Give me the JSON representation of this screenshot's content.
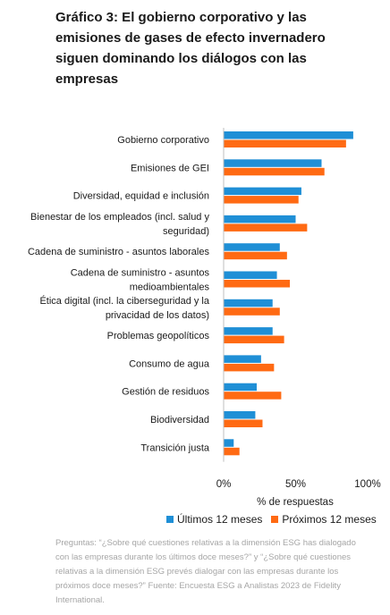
{
  "title": "Gráfico 3: El gobierno corporativo y las emisiones de gases de efecto invernadero siguen dominando los diálogos con las empresas",
  "footnote": "Preguntas: “¿Sobre qué cuestiones relativas a la dimensión ESG has dialogado con las empresas durante los últimos doce meses?” y “¿Sobre qué cuestiones relativas a la dimensión ESG prevés dialogar con las empresas durante los próximos doce meses?” Fuente: Encuesta ESG a Analistas 2023 de Fidelity International.",
  "chart_data": {
    "type": "bar",
    "orientation": "horizontal",
    "categories": [
      [
        "Gobierno corporativo"
      ],
      [
        "Emisiones de GEI"
      ],
      [
        "Diversidad, equidad e inclusión"
      ],
      [
        "Bienestar de los empleados (incl. salud y",
        "seguridad)"
      ],
      [
        "Cadena de suministro - asuntos laborales"
      ],
      [
        "Cadena de suministro - asuntos",
        "medioambientales"
      ],
      [
        "Ética digital (incl. la ciberseguridad y la",
        "privacidad de los datos)"
      ],
      [
        "Problemas geopolíticos"
      ],
      [
        "Consumo de agua"
      ],
      [
        "Gestión de residuos"
      ],
      [
        "Biodiversidad"
      ],
      [
        "Transición justa"
      ]
    ],
    "series": [
      {
        "name": "Últimos 12 meses",
        "color": "#1f8fd6",
        "values": [
          90,
          68,
          54,
          50,
          39,
          37,
          34,
          34,
          26,
          23,
          22,
          7
        ]
      },
      {
        "name": "Próximos 12 meses",
        "color": "#ff6a13",
        "values": [
          85,
          70,
          52,
          58,
          44,
          46,
          39,
          42,
          35,
          40,
          27,
          11
        ]
      }
    ],
    "xlabel": "% de respuestas",
    "xlim": [
      0,
      100
    ],
    "xticks": [
      "0%",
      "50%",
      "100%"
    ],
    "xtick_values": [
      0,
      50,
      100
    ],
    "grid": false,
    "legend_position": "bottom"
  }
}
